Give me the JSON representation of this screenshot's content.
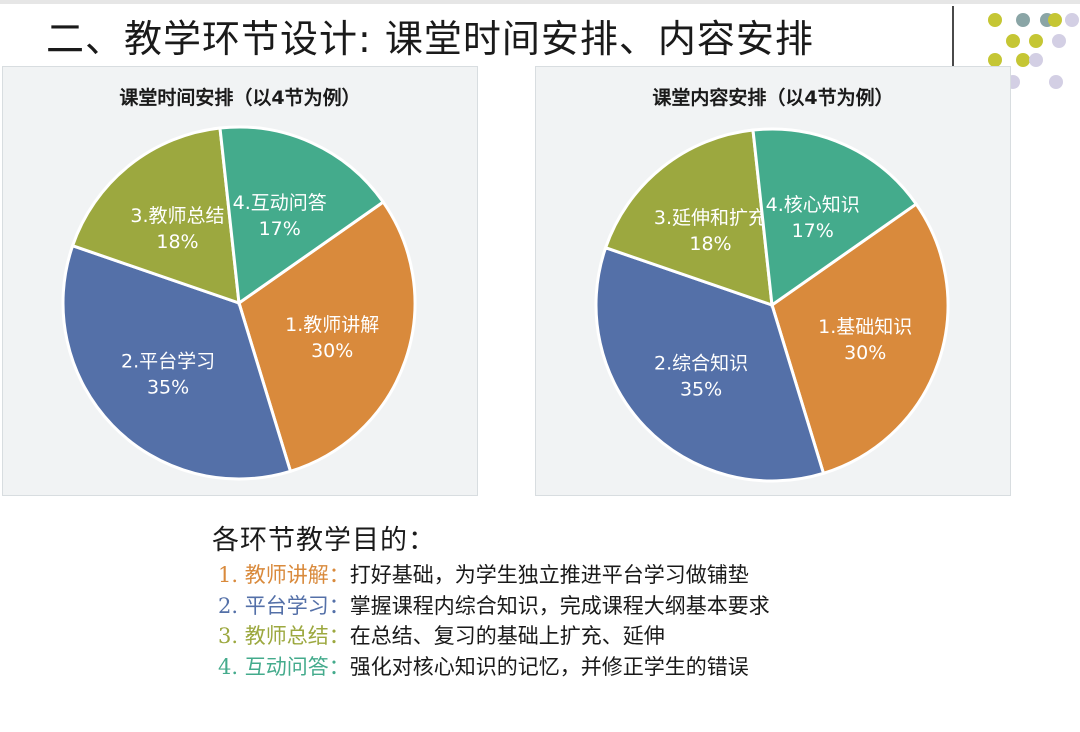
{
  "slide": {
    "title": "二、教学环节设计: 课堂时间安排、内容安排",
    "decor_dot_colors": [
      "#8aa5a6",
      "#8aa5a6",
      "#c5c634",
      "#c5c634",
      "#c5c634",
      "#c5c634",
      "#c5c634",
      "#c5c634",
      "#d3cfe4",
      "#d3cfe4",
      "#d3cfe4",
      "#d3cfe4",
      "#d3cfe4"
    ]
  },
  "colors": {
    "orange": "#d98a3c",
    "blue": "#5470a8",
    "olive": "#9ca83f",
    "teal": "#44ab8c"
  },
  "chart_data": [
    {
      "type": "pie",
      "title": "课堂时间安排（以4节为例）",
      "slices": [
        {
          "name": "1.教师讲解",
          "value": 30,
          "label": "30%",
          "color": "#d98a3c"
        },
        {
          "name": "2.平台学习",
          "value": 35,
          "label": "35%",
          "color": "#5470a8"
        },
        {
          "name": "3.教师总结",
          "value": 18,
          "label": "18%",
          "color": "#9ca83f"
        },
        {
          "name": "4.互动问答",
          "value": 17,
          "label": "17%",
          "color": "#44ab8c"
        }
      ]
    },
    {
      "type": "pie",
      "title": "课堂内容安排（以4节为例）",
      "slices": [
        {
          "name": "1.基础知识",
          "value": 30,
          "label": "30%",
          "color": "#d98a3c"
        },
        {
          "name": "2.综合知识",
          "value": 35,
          "label": "35%",
          "color": "#5470a8"
        },
        {
          "name": "3.延伸和扩充",
          "value": 18,
          "label": "18%",
          "color": "#9ca83f"
        },
        {
          "name": "4.核心知识",
          "value": 17,
          "label": "17%",
          "color": "#44ab8c"
        }
      ]
    }
  ],
  "purposes": {
    "heading": "各环节教学目的：",
    "items": [
      {
        "label": "1. 教师讲解：",
        "desc": "打好基础，为学生独立推进平台学习做铺垫",
        "color": "#d98a3c"
      },
      {
        "label": "2. 平台学习：",
        "desc": "掌握课程内综合知识，完成课程大纲基本要求",
        "color": "#5470a8"
      },
      {
        "label": "3. 教师总结：",
        "desc": "在总结、复习的基础上扩充、延伸",
        "color": "#9ca83f"
      },
      {
        "label": "4. 互动问答：",
        "desc": "强化对核心知识的记忆，并修正学生的错误",
        "color": "#44ab8c"
      }
    ]
  }
}
